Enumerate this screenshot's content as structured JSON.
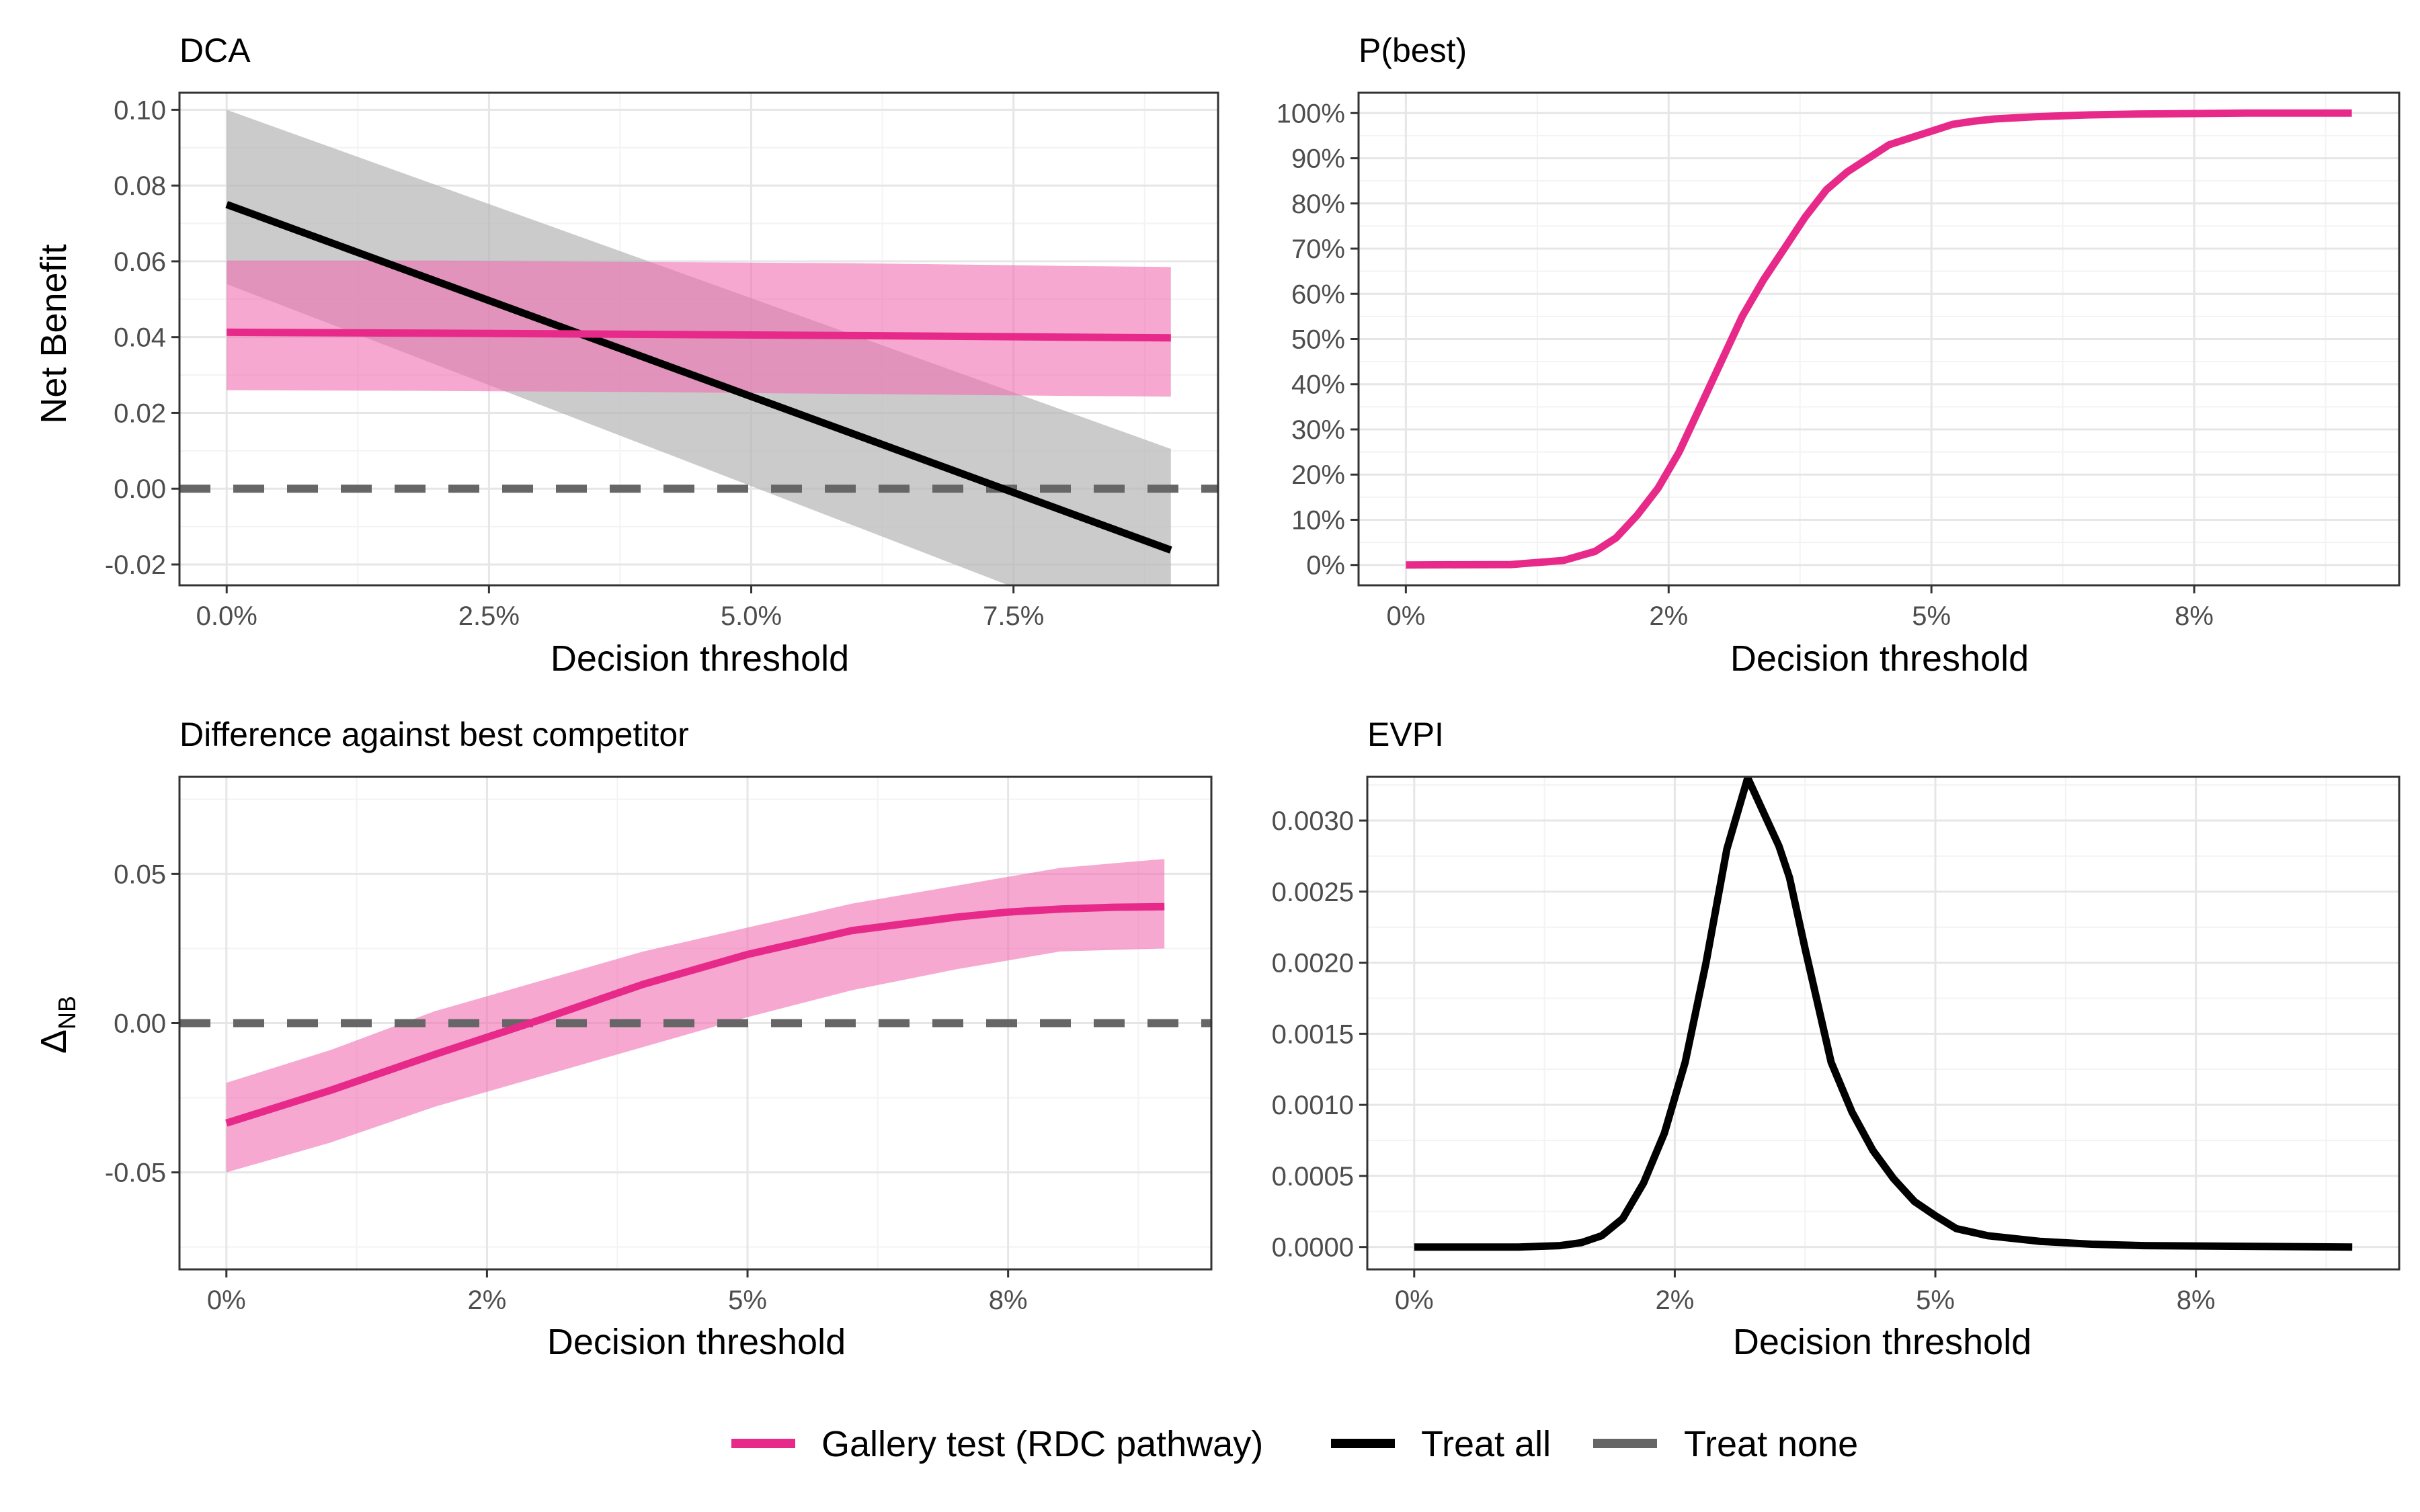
{
  "colors": {
    "model": "#e7298a",
    "model_band": "#f06eb0",
    "treat_all": "#000000",
    "treat_all_band": "#b5b5b5",
    "treat_none": "#666666",
    "grid_major": "#e6e6e6",
    "grid_minor": "#f3f3f3",
    "panel_border": "#333333",
    "text": "#000000",
    "tick_text": "#4d4d4d"
  },
  "legend": {
    "placement": "bottom",
    "items": [
      {
        "key": "model",
        "label": "Gallery test (RDC pathway)"
      },
      {
        "key": "treat_all",
        "label": "Treat all"
      },
      {
        "key": "treat_none",
        "label": "Treat none"
      }
    ]
  },
  "chart_data": [
    {
      "id": "dca",
      "type": "line",
      "title": "DCA",
      "xlabel": "Decision threshold",
      "ylabel": "Net Benefit",
      "xlim": [
        -0.0045,
        0.0945
      ],
      "ylim": [
        -0.0255,
        0.1045
      ],
      "xticks": [
        0,
        0.025,
        0.05,
        0.075
      ],
      "xtick_labels": [
        "0.0%",
        "2.5%",
        "5.0%",
        "7.5%"
      ],
      "yticks": [
        -0.02,
        0,
        0.02,
        0.04,
        0.06,
        0.08,
        0.1
      ],
      "ytick_labels": [
        "-0.02",
        "0.00",
        "0.02",
        "0.04",
        "0.06",
        "0.08",
        "0.10"
      ],
      "grid": true,
      "series": [
        {
          "key": "treat_all",
          "kind": "band",
          "x": [
            0,
            0.09
          ],
          "lower": [
            0.054,
            -0.042
          ],
          "upper": [
            0.1,
            0.0105
          ]
        },
        {
          "key": "model",
          "kind": "band",
          "x": [
            0,
            0.02,
            0.04,
            0.06,
            0.08,
            0.09
          ],
          "lower": [
            0.026,
            0.0258,
            0.0255,
            0.025,
            0.0245,
            0.0243
          ],
          "upper": [
            0.0602,
            0.0602,
            0.0598,
            0.0595,
            0.0588,
            0.0585
          ]
        },
        {
          "key": "treat_none",
          "kind": "line",
          "dashed": true,
          "x": [
            -0.0045,
            0.0945
          ],
          "y": [
            0,
            0
          ]
        },
        {
          "key": "treat_all",
          "kind": "line",
          "x": [
            0,
            0.09
          ],
          "y": [
            0.075,
            -0.0162
          ]
        },
        {
          "key": "model",
          "kind": "line",
          "x": [
            0,
            0.03,
            0.06,
            0.09
          ],
          "y": [
            0.0413,
            0.0409,
            0.0404,
            0.0398
          ]
        }
      ]
    },
    {
      "id": "pbest",
      "type": "line",
      "title": "P(best)",
      "xlabel": "Decision threshold",
      "xlim": [
        -0.0045,
        0.0945
      ],
      "ylim": [
        -0.045,
        1.045
      ],
      "xticks": [
        0,
        0.025,
        0.05,
        0.075
      ],
      "xtick_labels": [
        "0%",
        "2%",
        "5%",
        "8%"
      ],
      "yticks": [
        0,
        0.1,
        0.2,
        0.3,
        0.4,
        0.5,
        0.6,
        0.7,
        0.8,
        0.9,
        1.0
      ],
      "ytick_labels": [
        "0%",
        "10%",
        "20%",
        "30%",
        "40%",
        "50%",
        "60%",
        "70%",
        "80%",
        "90%",
        "100%"
      ],
      "grid": true,
      "series": [
        {
          "key": "model",
          "kind": "line",
          "x": [
            0,
            0.01,
            0.015,
            0.018,
            0.02,
            0.022,
            0.024,
            0.026,
            0.028,
            0.03,
            0.032,
            0.034,
            0.036,
            0.038,
            0.04,
            0.042,
            0.044,
            0.046,
            0.048,
            0.05,
            0.052,
            0.054,
            0.056,
            0.06,
            0.065,
            0.07,
            0.08,
            0.09
          ],
          "y": [
            0,
            0.001,
            0.01,
            0.03,
            0.06,
            0.11,
            0.17,
            0.25,
            0.35,
            0.45,
            0.55,
            0.63,
            0.7,
            0.77,
            0.83,
            0.87,
            0.9,
            0.93,
            0.945,
            0.96,
            0.975,
            0.982,
            0.987,
            0.992,
            0.996,
            0.998,
            1.0,
            1.0
          ]
        }
      ]
    },
    {
      "id": "delta",
      "type": "line",
      "title": "Difference against best competitor",
      "xlabel": "Decision threshold",
      "ylabel": "Δ",
      "ylabel_sub": "NB",
      "xlim": [
        -0.0045,
        0.0945
      ],
      "ylim": [
        -0.0825,
        0.0825
      ],
      "xticks": [
        0,
        0.025,
        0.05,
        0.075
      ],
      "xtick_labels": [
        "0%",
        "2%",
        "5%",
        "8%"
      ],
      "yticks": [
        -0.05,
        0,
        0.05
      ],
      "ytick_labels": [
        "-0.05",
        "0.00",
        "0.05"
      ],
      "grid": true,
      "series": [
        {
          "key": "model",
          "kind": "band",
          "x": [
            0,
            0.01,
            0.02,
            0.03,
            0.04,
            0.05,
            0.06,
            0.07,
            0.075,
            0.08,
            0.09
          ],
          "lower": [
            -0.05,
            -0.04,
            -0.028,
            -0.018,
            -0.008,
            0.002,
            0.011,
            0.018,
            0.021,
            0.024,
            0.025
          ],
          "upper": [
            -0.02,
            -0.009,
            0.004,
            0.014,
            0.024,
            0.032,
            0.04,
            0.046,
            0.049,
            0.052,
            0.055
          ]
        },
        {
          "key": "treat_none",
          "kind": "line",
          "dashed": true,
          "x": [
            -0.0045,
            0.0945
          ],
          "y": [
            0,
            0
          ]
        },
        {
          "key": "model",
          "kind": "line",
          "x": [
            0,
            0.01,
            0.02,
            0.03,
            0.04,
            0.05,
            0.06,
            0.07,
            0.075,
            0.08,
            0.085,
            0.09
          ],
          "y": [
            -0.0335,
            -0.0225,
            -0.0105,
            0.001,
            0.013,
            0.023,
            0.031,
            0.0355,
            0.0372,
            0.0382,
            0.0388,
            0.039
          ]
        }
      ]
    },
    {
      "id": "evpi",
      "type": "line",
      "title": "EVPI",
      "xlabel": "Decision threshold",
      "xlim": [
        -0.0045,
        0.0945
      ],
      "ylim": [
        -0.0001575,
        0.0033075
      ],
      "xticks": [
        0,
        0.025,
        0.05,
        0.075
      ],
      "xtick_labels": [
        "0%",
        "2%",
        "5%",
        "8%"
      ],
      "yticks": [
        0,
        0.0005,
        0.001,
        0.0015,
        0.002,
        0.0025,
        0.003
      ],
      "ytick_labels": [
        "0.0000",
        "0.0005",
        "0.0010",
        "0.0015",
        "0.0020",
        "0.0025",
        "0.0030"
      ],
      "grid": true,
      "series": [
        {
          "key": "treat_all",
          "kind": "line",
          "x": [
            0,
            0.01,
            0.014,
            0.016,
            0.018,
            0.02,
            0.022,
            0.024,
            0.026,
            0.028,
            0.03,
            0.032,
            0.034,
            0.035,
            0.036,
            0.0375,
            0.04,
            0.042,
            0.044,
            0.046,
            0.048,
            0.05,
            0.052,
            0.055,
            0.06,
            0.065,
            0.07,
            0.09
          ],
          "y": [
            0,
            0,
            1e-05,
            3e-05,
            8e-05,
            0.0002,
            0.00045,
            0.0008,
            0.0013,
            0.002,
            0.0028,
            0.0033,
            0.00298,
            0.00282,
            0.0026,
            0.0021,
            0.0013,
            0.00095,
            0.00068,
            0.00048,
            0.00032,
            0.00022,
            0.00013,
            8e-05,
            4e-05,
            2e-05,
            1e-05,
            0
          ]
        }
      ]
    }
  ]
}
